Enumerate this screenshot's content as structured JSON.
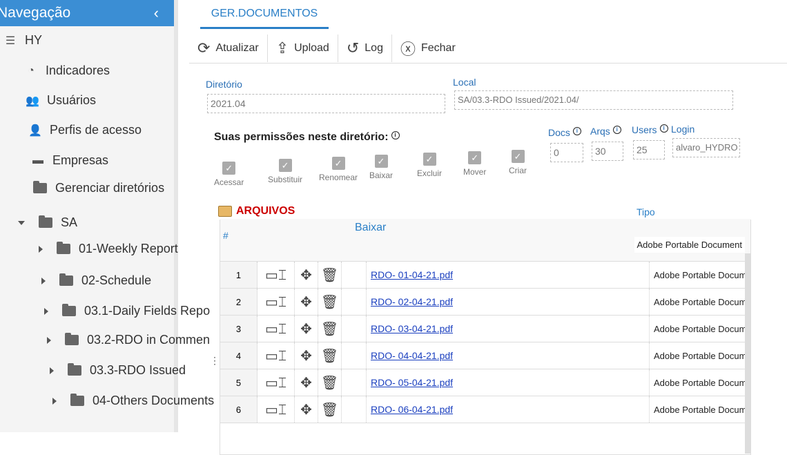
{
  "sidebar": {
    "title": "Navegação",
    "root": "HY",
    "items": [
      {
        "label": "Indicadores",
        "icon": "gauge-icon"
      },
      {
        "label": "Usuários",
        "icon": "users-icon"
      },
      {
        "label": "Perfis de acesso",
        "icon": "user-lock-icon"
      },
      {
        "label": "Empresas",
        "icon": "building-icon"
      },
      {
        "label": "Gerenciar diretórios",
        "icon": "folders-icon"
      }
    ],
    "tree_root": "SA",
    "folders": [
      "01-Weekly Report",
      "02-Schedule",
      "03.1-Daily Fields Repo",
      "03.2-RDO in Commen",
      "03.3-RDO Issued",
      "04-Others Documents"
    ]
  },
  "tab": "GER.DOCUMENTOS",
  "toolbar": {
    "refresh": "Atualizar",
    "upload": "Upload",
    "log": "Log",
    "close": "Fechar"
  },
  "form": {
    "dir_label": "Diretório",
    "dir_value": "2021.04",
    "local_label": "Local",
    "local_value": "SA/03.3-RDO Issued/2021.04/",
    "perm_title": "Suas permissões neste diretório:",
    "permissions": [
      "Acessar",
      "Substituir",
      "Renomear",
      "Baixar",
      "Excluir",
      "Mover",
      "Criar"
    ],
    "docs_label": "Docs",
    "docs": "0",
    "arqs_label": "Arqs",
    "arqs": "30",
    "users_label": "Users",
    "users": "25",
    "login_label": "Login",
    "login": "alvaro_HYDRO"
  },
  "files": {
    "title": "ARQUIVOS",
    "col_hash": "#",
    "col_download": "Baixar",
    "col_type": "Tipo",
    "header_type_value": "Adobe Portable Document",
    "rows": [
      {
        "n": "1",
        "name": "RDO- 01-04-21.pdf",
        "type": "Adobe Portable Document"
      },
      {
        "n": "2",
        "name": "RDO- 02-04-21.pdf",
        "type": "Adobe Portable Document"
      },
      {
        "n": "3",
        "name": "RDO- 03-04-21.pdf",
        "type": "Adobe Portable Document"
      },
      {
        "n": "4",
        "name": "RDO- 04-04-21.pdf",
        "type": "Adobe Portable Document"
      },
      {
        "n": "5",
        "name": "RDO- 05-04-21.pdf",
        "type": "Adobe Portable Document"
      },
      {
        "n": "6",
        "name": "RDO- 06-04-21.pdf",
        "type": "Adobe Portable Document"
      }
    ]
  }
}
